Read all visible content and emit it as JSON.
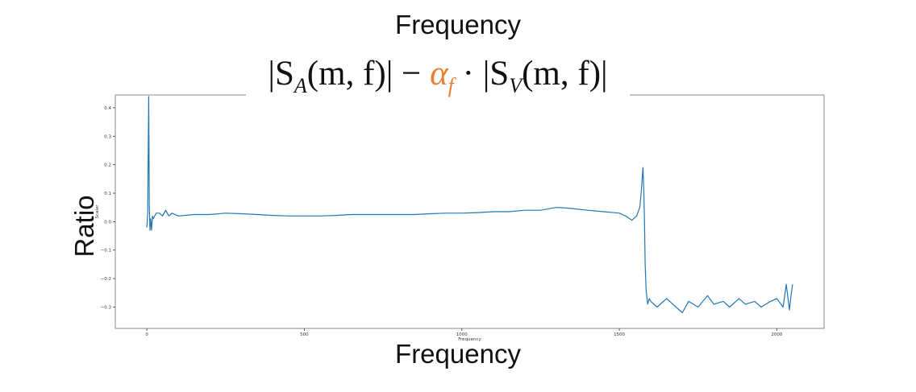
{
  "slide": {
    "top_title": "Frequency",
    "bottom_title": "Frequency",
    "ylabel_large": "Ratio",
    "formula": {
      "left": "|S",
      "sub_a": "A",
      "mid1": "(m, f)| −",
      "alpha": "α",
      "sub_f": "f",
      "mid2": "· |S",
      "sub_v": "V",
      "end": "(m, f)|"
    }
  },
  "colors": {
    "series": "#1f77b4",
    "alpha": "#ED7D31",
    "axes": "#333333"
  },
  "chart_data": {
    "type": "line",
    "xlabel": "Frequency",
    "ylabel": "Scaler",
    "xlim": [
      -100,
      2150
    ],
    "ylim": [
      -0.375,
      0.445
    ],
    "xticks": [
      0,
      500,
      1000,
      1500,
      2000
    ],
    "xtick_labels": [
      "0",
      "500",
      "1000",
      "1500",
      "2000"
    ],
    "yticks": [
      0.4,
      0.3,
      0.2,
      0.1,
      0.0,
      -0.1,
      -0.2,
      -0.3
    ],
    "ytick_labels": [
      "0.4",
      "0.3",
      "0.2",
      "0.1",
      "0.0",
      "−0.1",
      "−0.2",
      "−0.3"
    ],
    "grid": false,
    "series": [
      {
        "x": [
          0,
          3,
          6,
          8,
          10,
          12,
          15,
          18,
          20,
          25,
          30,
          40,
          50,
          60,
          70,
          80,
          100,
          150,
          200,
          250,
          300,
          350,
          400,
          450,
          500,
          550,
          600,
          650,
          700,
          750,
          800,
          850,
          900,
          950,
          1000,
          1050,
          1100,
          1150,
          1200,
          1250,
          1300,
          1330,
          1360,
          1400,
          1450,
          1500,
          1520,
          1540,
          1555,
          1565,
          1570,
          1575,
          1578,
          1580,
          1582,
          1585,
          1590,
          1595,
          1600,
          1620,
          1650,
          1680,
          1700,
          1720,
          1750,
          1780,
          1800,
          1830,
          1850,
          1880,
          1900,
          1930,
          1950,
          1980,
          2000,
          2020,
          2030,
          2040,
          2045,
          2050
        ],
        "y": [
          -0.02,
          0.03,
          0.44,
          0.05,
          -0.03,
          0.01,
          -0.03,
          0.02,
          0.01,
          0.02,
          0.03,
          0.03,
          0.02,
          0.04,
          0.02,
          0.03,
          0.02,
          0.025,
          0.025,
          0.03,
          0.028,
          0.025,
          0.022,
          0.02,
          0.02,
          0.02,
          0.022,
          0.025,
          0.025,
          0.025,
          0.025,
          0.025,
          0.028,
          0.03,
          0.03,
          0.032,
          0.035,
          0.035,
          0.04,
          0.04,
          0.05,
          0.048,
          0.045,
          0.04,
          0.035,
          0.03,
          0.02,
          0.005,
          0.02,
          0.05,
          0.11,
          0.19,
          0.1,
          0.0,
          -0.15,
          -0.24,
          -0.29,
          -0.27,
          -0.28,
          -0.3,
          -0.27,
          -0.3,
          -0.32,
          -0.28,
          -0.3,
          -0.26,
          -0.29,
          -0.28,
          -0.3,
          -0.27,
          -0.29,
          -0.28,
          -0.3,
          -0.28,
          -0.27,
          -0.3,
          -0.22,
          -0.31,
          -0.26,
          -0.22
        ]
      }
    ]
  }
}
